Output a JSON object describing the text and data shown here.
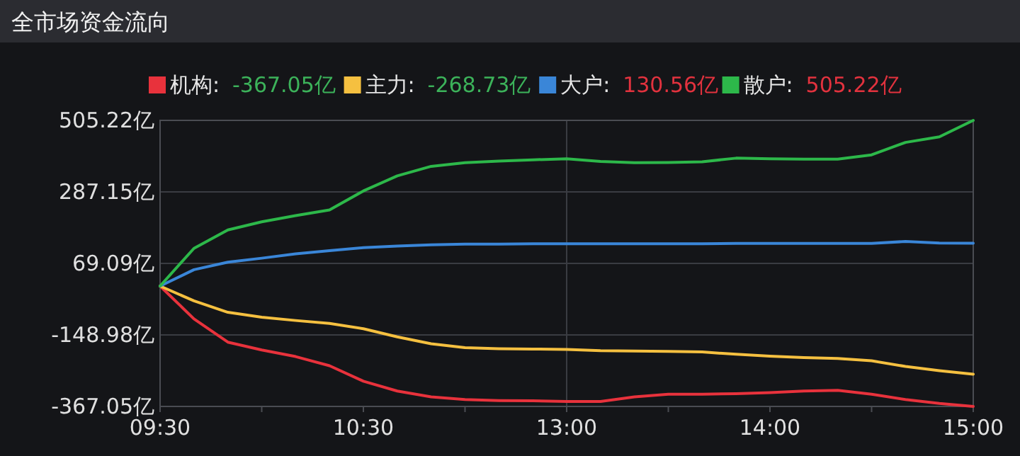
{
  "chart_data": {
    "type": "line",
    "title": "全市场资金流向",
    "categories": [
      "09:30",
      null,
      null,
      null,
      null,
      null,
      "10:30",
      null,
      null,
      null,
      null,
      null,
      "13:00",
      null,
      null,
      null,
      null,
      null,
      "14:00",
      null,
      null,
      null,
      null,
      null,
      "15:00"
    ],
    "ylim": [
      -367.05,
      505.22
    ],
    "yticks": [
      {
        "value": 505.22,
        "label": "505.22亿"
      },
      {
        "value": 287.15,
        "label": "287.15亿"
      },
      {
        "value": 69.09,
        "label": "69.09亿"
      },
      {
        "value": -148.98,
        "label": "-148.98亿"
      },
      {
        "value": -367.05,
        "label": "-367.05亿"
      }
    ],
    "annotations": [
      "-367.05亿",
      "-268.73亿",
      "130.56亿",
      "505.22亿"
    ],
    "grid": "y",
    "legend": "top",
    "marker": "none",
    "line_style": "solid",
    "ref_lines": [
      {
        "axis": "x",
        "value": "13:00",
        "label": null,
        "color": "#3a3c42"
      }
    ],
    "series": [
      {
        "name": "机构:",
        "color": "#e8323c",
        "values": [
          0,
          -100,
          -171,
          -195,
          -215,
          -243,
          -290,
          -320,
          -338,
          -346,
          -349,
          -350,
          -352,
          -352,
          -338,
          -330,
          -330,
          -328,
          -325,
          -320,
          -318,
          -330,
          -346,
          -358,
          -367.05
        ]
      },
      {
        "name": "主力:",
        "color": "#f5c040",
        "values": [
          0,
          -45,
          -80,
          -95,
          -105,
          -114,
          -130,
          -155,
          -176,
          -188,
          -191,
          -192,
          -193,
          -197,
          -198,
          -199,
          -201,
          -208,
          -214,
          -218,
          -221,
          -228,
          -245,
          -258,
          -268.73
        ]
      },
      {
        "name": "大户:",
        "color": "#3a86d8",
        "values": [
          0,
          50,
          73,
          85,
          98,
          108,
          117,
          122,
          126,
          128,
          128,
          129,
          129,
          129,
          129,
          129,
          129,
          130,
          130,
          130,
          130,
          130,
          136,
          131,
          130.56
        ]
      },
      {
        "name": "散户:",
        "color": "#2db84a",
        "values": [
          0,
          115,
          171,
          196,
          215,
          232,
          290,
          336,
          365,
          376,
          381,
          385,
          388,
          380,
          376,
          377,
          379,
          390,
          388,
          387,
          387,
          400,
          438,
          455,
          505.22
        ]
      }
    ]
  }
}
